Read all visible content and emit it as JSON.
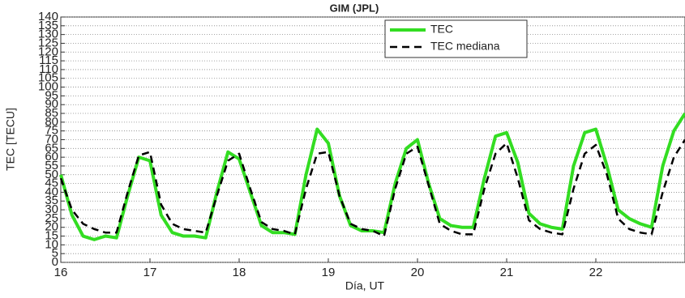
{
  "chart_data": {
    "type": "line",
    "title": "GIM (JPL)",
    "xlabel": "Día, UT",
    "ylabel": "TEC [TECU]",
    "x": [
      16,
      16.125,
      16.25,
      16.375,
      16.5,
      16.625,
      16.75,
      16.875,
      17,
      17.125,
      17.25,
      17.375,
      17.5,
      17.625,
      17.75,
      17.875,
      18,
      18.125,
      18.25,
      18.375,
      18.5,
      18.625,
      18.75,
      18.875,
      19,
      19.125,
      19.25,
      19.375,
      19.5,
      19.625,
      19.75,
      19.875,
      20,
      20.125,
      20.25,
      20.375,
      20.5,
      20.625,
      20.75,
      20.875,
      21,
      21.125,
      21.25,
      21.375,
      21.5,
      21.625,
      21.75,
      21.875,
      22,
      22.125,
      22.25,
      22.375,
      22.5,
      22.625,
      22.75,
      22.875,
      23
    ],
    "series": [
      {
        "name": "TEC",
        "color": "#33dd22",
        "dash": false,
        "values": [
          50,
          27,
          15,
          13,
          15,
          14,
          38,
          60,
          58,
          27,
          17,
          15,
          15,
          14,
          40,
          63,
          59,
          40,
          21,
          17,
          17,
          16,
          50,
          76,
          68,
          38,
          21,
          18,
          18,
          17,
          45,
          65,
          70,
          45,
          25,
          21,
          20,
          20,
          48,
          72,
          74,
          57,
          28,
          22,
          20,
          19,
          55,
          74,
          76,
          55,
          30,
          25,
          22,
          20,
          55,
          75,
          85
        ]
      },
      {
        "name": "TEC mediana",
        "color": "#000000",
        "dash": true,
        "values": [
          48,
          30,
          22,
          19,
          17,
          17,
          40,
          61,
          63,
          33,
          22,
          19,
          18,
          17,
          38,
          58,
          62,
          42,
          23,
          19,
          18,
          16,
          42,
          62,
          63,
          38,
          22,
          19,
          18,
          15,
          42,
          62,
          66,
          44,
          22,
          18,
          16,
          16,
          42,
          62,
          68,
          48,
          24,
          19,
          17,
          16,
          42,
          62,
          67,
          50,
          25,
          19,
          17,
          16,
          40,
          60,
          70
        ]
      }
    ],
    "xlim": [
      16,
      23
    ],
    "xticks": [
      16,
      17,
      18,
      19,
      20,
      21,
      22
    ],
    "ylim": [
      0,
      140
    ],
    "yticks": [
      0,
      5,
      10,
      15,
      20,
      25,
      30,
      35,
      40,
      45,
      50,
      55,
      60,
      65,
      70,
      75,
      80,
      85,
      90,
      95,
      100,
      105,
      110,
      115,
      120,
      125,
      130,
      135,
      140
    ],
    "grid": true,
    "legend": "upper center"
  }
}
